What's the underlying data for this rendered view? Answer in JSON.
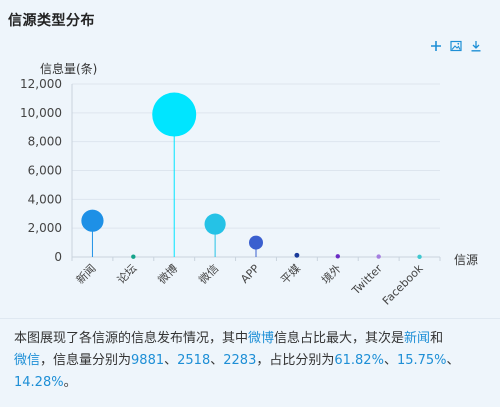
{
  "panel": {
    "title": "信源类型分布"
  },
  "toolbox": {
    "icons": [
      "plus-icon",
      "image-save-icon",
      "download-icon"
    ],
    "color": "#1e8fd6"
  },
  "chart_data": {
    "type": "scatter",
    "ylabel": "信息量(条)",
    "xlabel": "信源",
    "ylim": [
      0,
      12000
    ],
    "yticks": [
      "12,000",
      "10,000",
      "8,000",
      "6,000",
      "4,000",
      "2,000",
      "0"
    ],
    "categories": [
      "新闻",
      "论坛",
      "微博",
      "微信",
      "APP",
      "平媒",
      "境外",
      "Twitter",
      "Facebook"
    ],
    "values": [
      2518,
      20,
      9881,
      2283,
      1000,
      120,
      50,
      30,
      10
    ],
    "colors": [
      "#1e90e6",
      "#14a38a",
      "#00e5ff",
      "#25c2e6",
      "#3a5fcf",
      "#1a3a9a",
      "#6a2bc4",
      "#a57fe0",
      "#40c8d0"
    ],
    "grid": true,
    "legend": "none"
  },
  "summary": {
    "prefix": "本图展现了各信源的信息发布情况，其中",
    "top1": "微博",
    "mid1": "信息占比最大，其次是",
    "top2": "新闻",
    "and": "和",
    "top3": "微信",
    "mid2": "，信息量分别为",
    "v1": "9881",
    "sep1": "、",
    "v2": "2518",
    "sep2": "、",
    "v3": "2283",
    "mid3": "，占比分别为",
    "p1": "61.82%",
    "sep3": "、",
    "p2": "15.75%",
    "sep4": "、",
    "p3": "14.28%",
    "end": "。"
  }
}
